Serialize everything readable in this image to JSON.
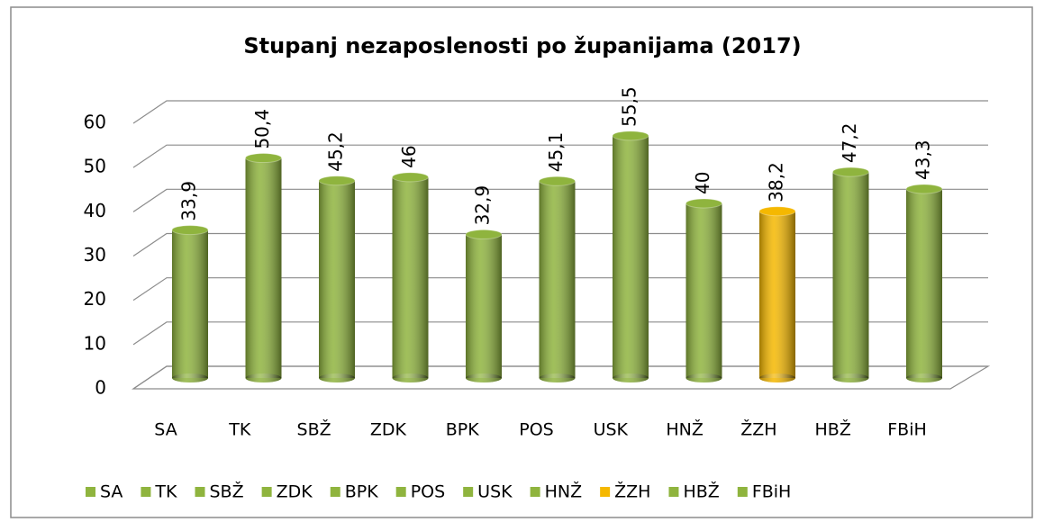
{
  "chart_data": {
    "type": "bar",
    "title": "Stupanj nezaposlenosti po županijama (2017)",
    "categories": [
      "SA",
      "TK",
      "SBŽ",
      "ZDK",
      "BPK",
      "POS",
      "USK",
      "HNŽ",
      "ŽZH",
      "HBŽ",
      "FBiH"
    ],
    "values": [
      33.9,
      50.4,
      45.2,
      46,
      32.9,
      45.1,
      55.5,
      40,
      38.2,
      47.2,
      43.3
    ],
    "value_labels": [
      "33,9",
      "50,4",
      "45,2",
      "46",
      "32,9",
      "45,1",
      "55,5",
      "40",
      "38,2",
      "47,2",
      "43,3"
    ],
    "colors": [
      "#8fb43e",
      "#8fb43e",
      "#8fb43e",
      "#8fb43e",
      "#8fb43e",
      "#8fb43e",
      "#8fb43e",
      "#8fb43e",
      "#f5b800",
      "#8fb43e",
      "#8fb43e"
    ],
    "ylim": [
      0,
      60
    ],
    "yticks": [
      0,
      10,
      20,
      30,
      40,
      50,
      60
    ],
    "grid": true,
    "legend": "bottom"
  }
}
